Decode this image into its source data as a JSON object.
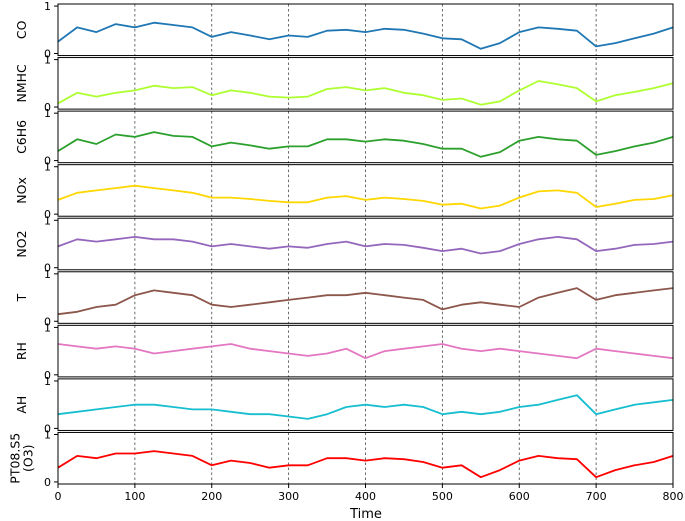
{
  "chart_data": {
    "type": "line",
    "xlabel": "Time",
    "xlim": [
      0,
      800
    ],
    "xticks": [
      0,
      100,
      200,
      300,
      400,
      500,
      600,
      700,
      800
    ],
    "ylim": [
      0,
      1
    ],
    "yticks": [
      0,
      1
    ],
    "separators": [
      100,
      200,
      300,
      400,
      500,
      600,
      700
    ],
    "series": [
      {
        "name": "CO",
        "label_lines": [
          "CO"
        ],
        "color": "#1f77b4",
        "x": [
          0,
          25,
          50,
          75,
          100,
          125,
          150,
          175,
          200,
          225,
          250,
          275,
          300,
          325,
          350,
          375,
          400,
          425,
          450,
          475,
          500,
          525,
          550,
          575,
          600,
          625,
          650,
          675,
          700,
          725,
          750,
          775,
          800
        ],
        "values": [
          0.25,
          0.55,
          0.45,
          0.62,
          0.55,
          0.65,
          0.6,
          0.55,
          0.35,
          0.45,
          0.38,
          0.3,
          0.38,
          0.35,
          0.48,
          0.5,
          0.45,
          0.52,
          0.5,
          0.42,
          0.32,
          0.3,
          0.1,
          0.22,
          0.45,
          0.55,
          0.52,
          0.48,
          0.15,
          0.22,
          0.32,
          0.42,
          0.55
        ]
      },
      {
        "name": "NMHC",
        "label_lines": [
          "NMHC"
        ],
        "color": "#adff2f",
        "x": [
          0,
          25,
          50,
          75,
          100,
          125,
          150,
          175,
          200,
          225,
          250,
          275,
          300,
          325,
          350,
          375,
          400,
          425,
          450,
          475,
          500,
          525,
          550,
          575,
          600,
          625,
          650,
          675,
          700,
          725,
          750,
          775,
          800
        ],
        "values": [
          0.08,
          0.3,
          0.22,
          0.3,
          0.35,
          0.45,
          0.4,
          0.42,
          0.25,
          0.35,
          0.3,
          0.22,
          0.2,
          0.22,
          0.38,
          0.42,
          0.35,
          0.4,
          0.3,
          0.25,
          0.15,
          0.18,
          0.05,
          0.12,
          0.35,
          0.55,
          0.48,
          0.4,
          0.12,
          0.25,
          0.32,
          0.4,
          0.5
        ]
      },
      {
        "name": "C6H6",
        "label_lines": [
          "C6H6"
        ],
        "color": "#2ca02c",
        "x": [
          0,
          25,
          50,
          75,
          100,
          125,
          150,
          175,
          200,
          225,
          250,
          275,
          300,
          325,
          350,
          375,
          400,
          425,
          450,
          475,
          500,
          525,
          550,
          575,
          600,
          625,
          650,
          675,
          700,
          725,
          750,
          775,
          800
        ],
        "values": [
          0.2,
          0.45,
          0.35,
          0.55,
          0.5,
          0.6,
          0.52,
          0.5,
          0.3,
          0.38,
          0.32,
          0.25,
          0.3,
          0.3,
          0.45,
          0.45,
          0.4,
          0.45,
          0.42,
          0.35,
          0.25,
          0.25,
          0.08,
          0.18,
          0.42,
          0.5,
          0.45,
          0.42,
          0.12,
          0.2,
          0.3,
          0.38,
          0.5
        ]
      },
      {
        "name": "NOx",
        "label_lines": [
          "NOx"
        ],
        "color": "#ffd700",
        "x": [
          0,
          25,
          50,
          75,
          100,
          125,
          150,
          175,
          200,
          225,
          250,
          275,
          300,
          325,
          350,
          375,
          400,
          425,
          450,
          475,
          500,
          525,
          550,
          575,
          600,
          625,
          650,
          675,
          700,
          725,
          750,
          775,
          800
        ],
        "values": [
          0.3,
          0.45,
          0.5,
          0.55,
          0.6,
          0.55,
          0.5,
          0.45,
          0.35,
          0.35,
          0.32,
          0.28,
          0.25,
          0.25,
          0.35,
          0.38,
          0.3,
          0.35,
          0.32,
          0.28,
          0.2,
          0.22,
          0.12,
          0.18,
          0.35,
          0.48,
          0.5,
          0.45,
          0.15,
          0.22,
          0.3,
          0.32,
          0.4
        ]
      },
      {
        "name": "NO2",
        "label_lines": [
          "NO2"
        ],
        "color": "#9467bd",
        "x": [
          0,
          25,
          50,
          75,
          100,
          125,
          150,
          175,
          200,
          225,
          250,
          275,
          300,
          325,
          350,
          375,
          400,
          425,
          450,
          475,
          500,
          525,
          550,
          575,
          600,
          625,
          650,
          675,
          700,
          725,
          750,
          775,
          800
        ],
        "values": [
          0.45,
          0.6,
          0.55,
          0.6,
          0.65,
          0.6,
          0.6,
          0.55,
          0.45,
          0.5,
          0.45,
          0.4,
          0.45,
          0.42,
          0.5,
          0.55,
          0.45,
          0.5,
          0.48,
          0.42,
          0.35,
          0.4,
          0.3,
          0.35,
          0.5,
          0.6,
          0.65,
          0.6,
          0.35,
          0.4,
          0.48,
          0.5,
          0.55
        ]
      },
      {
        "name": "T",
        "label_lines": [
          "T"
        ],
        "color": "#8c564b",
        "x": [
          0,
          25,
          50,
          75,
          100,
          125,
          150,
          175,
          200,
          225,
          250,
          275,
          300,
          325,
          350,
          375,
          400,
          425,
          450,
          475,
          500,
          525,
          550,
          575,
          600,
          625,
          650,
          675,
          700,
          725,
          750,
          775,
          800
        ],
        "values": [
          0.15,
          0.2,
          0.3,
          0.35,
          0.55,
          0.65,
          0.6,
          0.55,
          0.35,
          0.3,
          0.35,
          0.4,
          0.45,
          0.5,
          0.55,
          0.55,
          0.6,
          0.55,
          0.5,
          0.45,
          0.25,
          0.35,
          0.4,
          0.35,
          0.3,
          0.5,
          0.6,
          0.7,
          0.45,
          0.55,
          0.6,
          0.65,
          0.7
        ]
      },
      {
        "name": "RH",
        "label_lines": [
          "RH"
        ],
        "color": "#e377c2",
        "x": [
          0,
          25,
          50,
          75,
          100,
          125,
          150,
          175,
          200,
          225,
          250,
          275,
          300,
          325,
          350,
          375,
          400,
          425,
          450,
          475,
          500,
          525,
          550,
          575,
          600,
          625,
          650,
          675,
          700,
          725,
          750,
          775,
          800
        ],
        "values": [
          0.65,
          0.6,
          0.55,
          0.6,
          0.55,
          0.45,
          0.5,
          0.55,
          0.6,
          0.65,
          0.55,
          0.5,
          0.45,
          0.4,
          0.45,
          0.55,
          0.35,
          0.5,
          0.55,
          0.6,
          0.65,
          0.55,
          0.5,
          0.55,
          0.5,
          0.45,
          0.4,
          0.35,
          0.55,
          0.5,
          0.45,
          0.4,
          0.35
        ]
      },
      {
        "name": "AH",
        "label_lines": [
          "AH"
        ],
        "color": "#17becf",
        "x": [
          0,
          25,
          50,
          75,
          100,
          125,
          150,
          175,
          200,
          225,
          250,
          275,
          300,
          325,
          350,
          375,
          400,
          425,
          450,
          475,
          500,
          525,
          550,
          575,
          600,
          625,
          650,
          675,
          700,
          725,
          750,
          775,
          800
        ],
        "values": [
          0.3,
          0.35,
          0.4,
          0.45,
          0.5,
          0.5,
          0.45,
          0.4,
          0.4,
          0.35,
          0.3,
          0.3,
          0.25,
          0.2,
          0.3,
          0.45,
          0.5,
          0.45,
          0.5,
          0.45,
          0.3,
          0.35,
          0.3,
          0.35,
          0.45,
          0.5,
          0.6,
          0.7,
          0.3,
          0.4,
          0.5,
          0.55,
          0.6
        ]
      },
      {
        "name": "PT08.S5 (O3)",
        "label_lines": [
          "PT08.S5",
          "(O3)"
        ],
        "color": "#ff0000",
        "x": [
          0,
          25,
          50,
          75,
          100,
          125,
          150,
          175,
          200,
          225,
          250,
          275,
          300,
          325,
          350,
          375,
          400,
          425,
          450,
          475,
          500,
          525,
          550,
          575,
          600,
          625,
          650,
          675,
          700,
          725,
          750,
          775,
          800
        ],
        "values": [
          0.3,
          0.55,
          0.5,
          0.6,
          0.6,
          0.65,
          0.6,
          0.55,
          0.35,
          0.45,
          0.4,
          0.3,
          0.35,
          0.35,
          0.5,
          0.5,
          0.45,
          0.5,
          0.48,
          0.42,
          0.3,
          0.35,
          0.1,
          0.25,
          0.45,
          0.55,
          0.5,
          0.48,
          0.1,
          0.25,
          0.35,
          0.42,
          0.55
        ]
      }
    ]
  }
}
